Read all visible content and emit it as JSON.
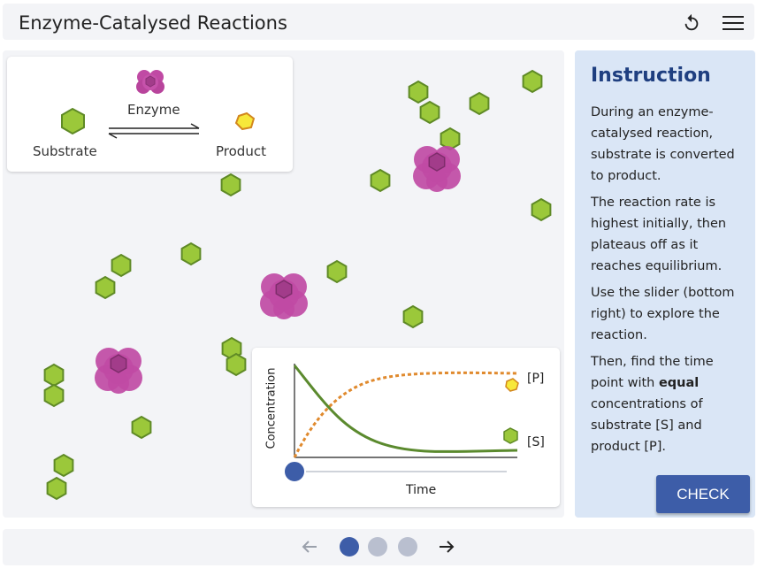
{
  "header": {
    "title": "Enzyme-Catalysed Reactions",
    "reset_icon": "reset-icon",
    "menu_icon": "hamburger-menu-icon"
  },
  "legend": {
    "enzyme_label": "Enzyme",
    "substrate_label": "Substrate",
    "product_label": "Product"
  },
  "graph": {
    "y_label": "Concentration",
    "x_label": "Time",
    "product_label": "[P]",
    "substrate_label": "[S]",
    "slider_value": 0
  },
  "colors": {
    "substrate": "#9bc83a",
    "substrate_stroke": "#5f8a26",
    "product": "#f7e83a",
    "product_stroke": "#d2871e",
    "enzyme": "#c04aa4",
    "s_curve": "#5b8a2e",
    "p_curve": "#e08a2e",
    "slider": "#3d5da8",
    "accent": "#3d5da8"
  },
  "instruction": {
    "heading": "Instruction",
    "p1": "During an enzyme-catalysed reaction, substrate is converted to product.",
    "p2": "The reaction rate is highest initially, then plateaus off as it reaches equilibrium.",
    "p3": "Use the slider (bottom right) to explore the reaction.",
    "p4_before": "Then, find the time point with ",
    "p4_bold": "equal",
    "p4_after": " concentrations of substrate [S] and product [P].",
    "check_label": "CHECK"
  },
  "pagination": {
    "prev_icon": "arrow-left-icon",
    "next_icon": "arrow-right-icon",
    "pages": 3,
    "current": 1
  }
}
